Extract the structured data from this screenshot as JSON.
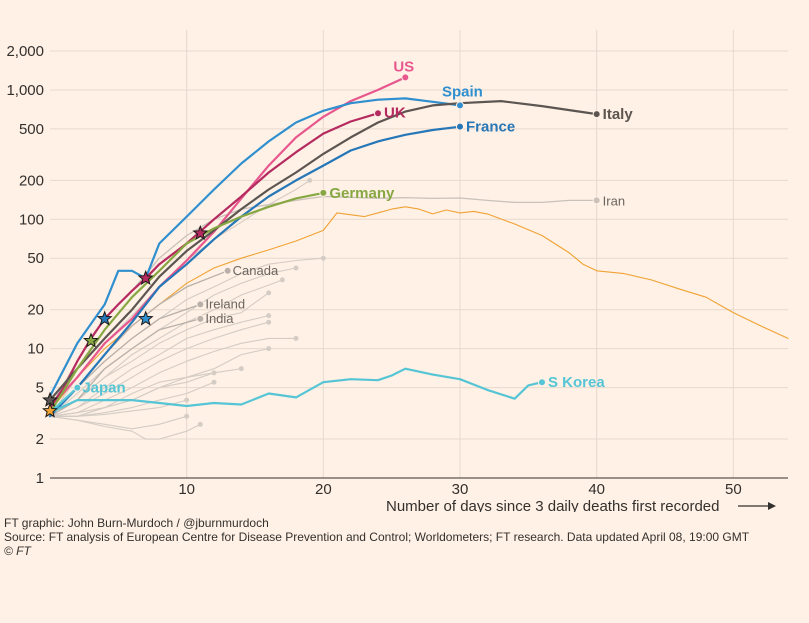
{
  "chart_data": {
    "type": "line",
    "y_scale": "log",
    "ylim": [
      1,
      2000
    ],
    "xlim": [
      0,
      54
    ],
    "xlabel": "Number of days since 3 daily deaths first recorded",
    "x_ticks": [
      "10",
      "20",
      "30",
      "40",
      "50"
    ],
    "y_ticks": [
      "1",
      "2",
      "5",
      "10",
      "20",
      "50",
      "100",
      "200",
      "500",
      "1,000",
      "2,000"
    ],
    "grid": "vertical and horizontal",
    "series": [
      {
        "name": "US",
        "color": "#e7578e",
        "emphasis": "major",
        "x": [
          0,
          2,
          4,
          6,
          8,
          10,
          12,
          14,
          16,
          18,
          20,
          22,
          24,
          25,
          26
        ],
        "y": [
          3.5,
          6,
          11,
          17,
          30,
          48,
          80,
          145,
          260,
          430,
          620,
          820,
          1000,
          1120,
          1250
        ]
      },
      {
        "name": "Spain",
        "color": "#2f8fcf",
        "emphasis": "major",
        "x": [
          0,
          2,
          4,
          5,
          6,
          7,
          8,
          10,
          12,
          14,
          16,
          18,
          20,
          22,
          24,
          26,
          28,
          30
        ],
        "y": [
          4.3,
          11,
          22,
          40,
          40,
          35,
          65,
          105,
          170,
          270,
          400,
          560,
          690,
          790,
          840,
          860,
          810,
          760
        ]
      },
      {
        "name": "UK",
        "color": "#b52a5f",
        "emphasis": "major",
        "x": [
          0,
          1,
          2,
          3,
          4,
          5,
          6,
          7,
          8,
          10,
          12,
          14,
          16,
          18,
          20,
          22,
          24
        ],
        "y": [
          3.5,
          5,
          8,
          12,
          17,
          22,
          28,
          35,
          45,
          65,
          100,
          150,
          230,
          330,
          460,
          570,
          660
        ]
      },
      {
        "name": "France",
        "color": "#2677b8",
        "emphasis": "major",
        "x": [
          0,
          2,
          4,
          6,
          8,
          10,
          12,
          14,
          16,
          18,
          20,
          22,
          24,
          26,
          28,
          30
        ],
        "y": [
          3,
          5,
          9,
          16,
          30,
          45,
          70,
          105,
          150,
          200,
          260,
          340,
          400,
          450,
          490,
          520
        ]
      },
      {
        "name": "Italy",
        "color": "#5c5551",
        "emphasis": "major",
        "x": [
          0,
          2,
          4,
          6,
          8,
          10,
          12,
          14,
          16,
          18,
          20,
          22,
          24,
          26,
          28,
          30,
          33,
          36,
          40
        ],
        "y": [
          4,
          7,
          12,
          20,
          36,
          57,
          82,
          120,
          170,
          230,
          320,
          430,
          560,
          680,
          760,
          790,
          820,
          750,
          650
        ]
      },
      {
        "name": "Germany",
        "color": "#87a743",
        "emphasis": "major",
        "x": [
          0,
          2,
          4,
          6,
          8,
          10,
          12,
          14,
          16,
          18,
          20
        ],
        "y": [
          3.2,
          7,
          14,
          25,
          40,
          65,
          85,
          105,
          125,
          145,
          160
        ]
      },
      {
        "name": "Iran",
        "color": "#c9c1ba",
        "emphasis": "minor",
        "x": [
          0,
          2,
          4,
          6,
          8,
          10,
          12,
          14,
          16,
          18,
          20,
          22,
          24,
          26,
          28,
          30,
          32,
          34,
          36,
          38,
          40
        ],
        "y": [
          3.5,
          8,
          17,
          28,
          50,
          75,
          100,
          120,
          130,
          140,
          150,
          148,
          145,
          147,
          145,
          146,
          140,
          135,
          135,
          140,
          140
        ]
      },
      {
        "name": "Canada",
        "color": "#b8b0a9",
        "emphasis": "minor",
        "x": [
          0,
          2,
          4,
          6,
          8,
          10,
          13
        ],
        "y": [
          3,
          5,
          9,
          15,
          22,
          30,
          40
        ]
      },
      {
        "name": "Ireland",
        "color": "#b8b0a9",
        "emphasis": "minor",
        "x": [
          0,
          2,
          4,
          6,
          8,
          11
        ],
        "y": [
          3,
          5,
          8,
          12,
          17,
          22
        ]
      },
      {
        "name": "India",
        "color": "#b8b0a9",
        "emphasis": "minor",
        "x": [
          0,
          2,
          4,
          6,
          8,
          11
        ],
        "y": [
          3,
          4,
          7,
          10,
          14,
          17
        ]
      },
      {
        "name": "S Korea",
        "color": "#55c5d6",
        "emphasis": "major",
        "x": [
          0,
          2,
          4,
          6,
          8,
          10,
          12,
          14,
          16,
          18,
          20,
          22,
          24,
          25,
          26,
          28,
          30,
          32,
          34,
          35,
          36
        ],
        "y": [
          3.2,
          4,
          4,
          4,
          3.8,
          3.6,
          3.8,
          3.7,
          4.5,
          4.2,
          5.5,
          5.8,
          5.7,
          6.2,
          7,
          6.3,
          5.8,
          4.8,
          4.1,
          5.2,
          5.5
        ]
      },
      {
        "name": "Japan",
        "color": "#55c5d6",
        "emphasis": "major",
        "x": [
          0,
          1,
          2
        ],
        "y": [
          3.2,
          4,
          5
        ]
      },
      {
        "name": "",
        "color": "#f0a234",
        "emphasis": "unlabeled",
        "x": [
          0,
          2,
          4,
          6,
          8,
          10,
          12,
          14,
          16,
          18,
          20,
          21,
          23,
          25,
          26,
          27,
          28,
          29,
          30,
          31,
          32,
          34,
          36,
          38,
          39,
          40,
          42,
          44,
          46,
          48,
          50,
          52,
          54
        ],
        "y": [
          3.3,
          6,
          10,
          15,
          22,
          32,
          42,
          50,
          58,
          68,
          82,
          112,
          105,
          120,
          125,
          120,
          110,
          118,
          112,
          115,
          110,
          92,
          75,
          55,
          45,
          40,
          38,
          34,
          29,
          25,
          19,
          15,
          12
        ]
      },
      {
        "name": "",
        "color": "#d4ccc5",
        "emphasis": "unlabeled",
        "x": [
          0,
          2,
          4,
          6,
          8,
          10,
          12,
          14,
          16,
          18,
          19
        ],
        "y": [
          3,
          6,
          11,
          18,
          30,
          48,
          70,
          95,
          130,
          170,
          200
        ]
      },
      {
        "name": "",
        "color": "#d4ccc5",
        "emphasis": "unlabeled",
        "x": [
          0,
          2,
          4,
          6,
          8,
          10,
          12,
          14,
          16,
          18,
          20
        ],
        "y": [
          3,
          5,
          8,
          12,
          17,
          24,
          30,
          38,
          45,
          48,
          50
        ]
      },
      {
        "name": "",
        "color": "#d4ccc5",
        "emphasis": "unlabeled",
        "x": [
          0,
          2,
          4,
          6,
          8,
          10,
          12,
          14,
          16,
          18
        ],
        "y": [
          3,
          4.5,
          7,
          10,
          14,
          19,
          26,
          32,
          38,
          42
        ]
      },
      {
        "name": "",
        "color": "#d4ccc5",
        "emphasis": "unlabeled",
        "x": [
          0,
          2,
          4,
          6,
          8,
          10,
          12,
          14,
          16,
          17
        ],
        "y": [
          3,
          4,
          6,
          9,
          12,
          16,
          20,
          26,
          31,
          34
        ]
      },
      {
        "name": "",
        "color": "#d4ccc5",
        "emphasis": "unlabeled",
        "x": [
          0,
          2,
          4,
          6,
          8,
          10,
          12,
          14,
          16
        ],
        "y": [
          3,
          4,
          6,
          8,
          11,
          14,
          17,
          19,
          27
        ]
      },
      {
        "name": "",
        "color": "#d4ccc5",
        "emphasis": "unlabeled",
        "x": [
          0,
          2,
          4,
          6,
          8,
          10,
          12,
          14,
          16
        ],
        "y": [
          3,
          3.5,
          5,
          7,
          9,
          12,
          14,
          16,
          18
        ]
      },
      {
        "name": "",
        "color": "#d4ccc5",
        "emphasis": "unlabeled",
        "x": [
          0,
          2,
          4,
          6,
          8,
          10,
          12,
          14,
          16
        ],
        "y": [
          3,
          3.5,
          4.5,
          6,
          8,
          10,
          12,
          14,
          16
        ]
      },
      {
        "name": "",
        "color": "#d4ccc5",
        "emphasis": "unlabeled",
        "x": [
          0,
          2,
          4,
          6,
          8,
          10,
          12,
          14,
          16,
          18
        ],
        "y": [
          3,
          3.2,
          4,
          5,
          6.5,
          8,
          9.5,
          11,
          12,
          12
        ]
      },
      {
        "name": "",
        "color": "#d4ccc5",
        "emphasis": "unlabeled",
        "x": [
          0,
          2,
          4,
          6,
          8,
          10,
          12,
          14,
          16
        ],
        "y": [
          3,
          3,
          3.5,
          4,
          5,
          6,
          7,
          9,
          10
        ]
      },
      {
        "name": "",
        "color": "#d4ccc5",
        "emphasis": "unlabeled",
        "x": [
          0,
          2,
          4,
          6,
          8,
          10,
          12,
          14
        ],
        "y": [
          3,
          3,
          3.5,
          4.5,
          5.5,
          6,
          6.5,
          7
        ]
      },
      {
        "name": "",
        "color": "#d4ccc5",
        "emphasis": "unlabeled",
        "x": [
          0,
          2,
          4,
          6,
          8,
          10,
          12
        ],
        "y": [
          3,
          3.2,
          3.5,
          4,
          5,
          5.5,
          6.5
        ]
      },
      {
        "name": "",
        "color": "#d4ccc5",
        "emphasis": "unlabeled",
        "x": [
          0,
          2,
          4,
          6,
          8,
          10,
          12
        ],
        "y": [
          3,
          3,
          3.2,
          3.5,
          4,
          4.5,
          5.5
        ]
      },
      {
        "name": "",
        "color": "#d4ccc5",
        "emphasis": "unlabeled",
        "x": [
          0,
          2,
          4,
          6,
          8,
          10
        ],
        "y": [
          3,
          3,
          3.1,
          3.3,
          3.5,
          4
        ]
      },
      {
        "name": "",
        "color": "#d4ccc5",
        "emphasis": "unlabeled",
        "x": [
          0,
          2,
          4,
          6,
          8,
          10
        ],
        "y": [
          3,
          2.8,
          2.6,
          2.4,
          2.6,
          3
        ]
      },
      {
        "name": "",
        "color": "#d4ccc5",
        "emphasis": "unlabeled",
        "x": [
          0,
          2,
          4,
          6,
          7,
          8,
          10,
          11
        ],
        "y": [
          3,
          2.8,
          2.5,
          2.3,
          2,
          2,
          2.3,
          2.6
        ]
      }
    ],
    "stars": [
      {
        "x": 0,
        "y": 3.3,
        "color": "#f0a234"
      },
      {
        "x": 0,
        "y": 4,
        "color": "#5c5551"
      },
      {
        "x": 3,
        "y": 11.5,
        "color": "#87a743"
      },
      {
        "x": 4,
        "y": 17,
        "color": "#2677b8"
      },
      {
        "x": 7,
        "y": 35,
        "color": "#b52a5f"
      },
      {
        "x": 7,
        "y": 17,
        "color": "#2f8fcf"
      },
      {
        "x": 11,
        "y": 78,
        "color": "#b52a5f"
      }
    ]
  },
  "footer": {
    "credit": "FT graphic: John Burn-Murdoch / @jburnmurdoch",
    "source": "Source: FT analysis of European Centre for Disease Prevention and Control; Worldometers; FT research. Data updated April 08, 19:00 GMT",
    "copyright": "© FT"
  }
}
